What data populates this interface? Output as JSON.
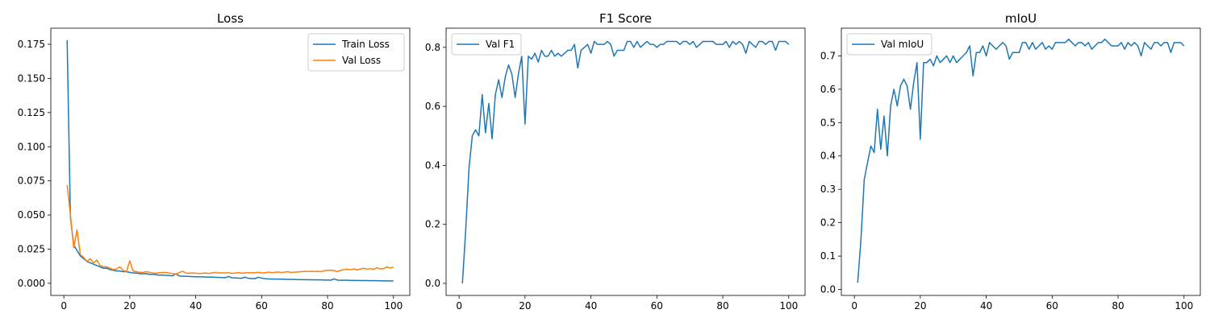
{
  "chart_data": [
    {
      "type": "line",
      "title": "Loss",
      "xlabel": "",
      "ylabel": "",
      "xlim": [
        -3.95,
        104.95
      ],
      "ylim": [
        -0.0089,
        0.1868
      ],
      "xticks": [
        0,
        20,
        40,
        60,
        80,
        100
      ],
      "xtick_labels": [
        "0",
        "20",
        "40",
        "60",
        "80",
        "100"
      ],
      "yticks": [
        0.0,
        0.025,
        0.05,
        0.075,
        0.1,
        0.125,
        0.15,
        0.175
      ],
      "ytick_labels": [
        "0.000",
        "0.025",
        "0.050",
        "0.075",
        "0.100",
        "0.125",
        "0.150",
        "0.175"
      ],
      "legend_position": "upper right",
      "grid": false,
      "x_start": 1,
      "series": [
        {
          "name": "Train Loss",
          "color": "#1f77b4",
          "values": [
            0.178,
            0.048,
            0.028,
            0.024,
            0.02,
            0.018,
            0.016,
            0.015,
            0.014,
            0.013,
            0.012,
            0.011,
            0.011,
            0.01,
            0.0095,
            0.009,
            0.009,
            0.0085,
            0.0085,
            0.008,
            0.0075,
            0.0075,
            0.007,
            0.007,
            0.007,
            0.0065,
            0.0065,
            0.0063,
            0.006,
            0.006,
            0.0058,
            0.0057,
            0.0055,
            0.007,
            0.0053,
            0.0052,
            0.0052,
            0.005,
            0.0049,
            0.0048,
            0.0047,
            0.0047,
            0.0046,
            0.0045,
            0.0045,
            0.0044,
            0.0043,
            0.0042,
            0.0041,
            0.005,
            0.004,
            0.0039,
            0.0038,
            0.0037,
            0.0045,
            0.0036,
            0.0035,
            0.0034,
            0.0044,
            0.0038,
            0.0033,
            0.0032,
            0.0031,
            0.0031,
            0.003,
            0.003,
            0.0029,
            0.0029,
            0.0028,
            0.0028,
            0.0027,
            0.0027,
            0.0027,
            0.0026,
            0.0026,
            0.0025,
            0.0025,
            0.0025,
            0.0024,
            0.0024,
            0.0023,
            0.0032,
            0.0023,
            0.0022,
            0.0022,
            0.0022,
            0.0021,
            0.0021,
            0.0021,
            0.002,
            0.002,
            0.002,
            0.0019,
            0.0019,
            0.0019,
            0.0018,
            0.0018,
            0.0018,
            0.0017,
            0.0017
          ]
        },
        {
          "name": "Val Loss",
          "color": "#ff7f0e",
          "values": [
            0.072,
            0.05,
            0.026,
            0.039,
            0.021,
            0.019,
            0.016,
            0.018,
            0.015,
            0.017,
            0.013,
            0.012,
            0.012,
            0.011,
            0.01,
            0.0105,
            0.012,
            0.0095,
            0.0085,
            0.0165,
            0.009,
            0.0085,
            0.008,
            0.008,
            0.0085,
            0.008,
            0.0075,
            0.0073,
            0.0078,
            0.0078,
            0.008,
            0.0075,
            0.0072,
            0.0065,
            0.0078,
            0.0088,
            0.0075,
            0.0073,
            0.0076,
            0.0074,
            0.0072,
            0.0073,
            0.0075,
            0.0072,
            0.0076,
            0.008,
            0.0075,
            0.0077,
            0.0075,
            0.0078,
            0.0072,
            0.0075,
            0.0078,
            0.0074,
            0.0076,
            0.0078,
            0.0075,
            0.0078,
            0.008,
            0.0077,
            0.0076,
            0.0082,
            0.0078,
            0.008,
            0.0083,
            0.0078,
            0.0082,
            0.0085,
            0.0079,
            0.0081,
            0.0083,
            0.0085,
            0.0087,
            0.0086,
            0.0088,
            0.0086,
            0.0088,
            0.0085,
            0.0092,
            0.0095,
            0.0096,
            0.0093,
            0.0085,
            0.0095,
            0.01,
            0.0102,
            0.01,
            0.0105,
            0.0098,
            0.0105,
            0.011,
            0.0103,
            0.0108,
            0.0102,
            0.0113,
            0.0105,
            0.0108,
            0.012,
            0.0112,
            0.0118
          ]
        }
      ]
    },
    {
      "type": "line",
      "title": "F1 Score",
      "xlabel": "",
      "ylabel": "",
      "xlim": [
        -3.95,
        104.95
      ],
      "ylim": [
        -0.041,
        0.865
      ],
      "xticks": [
        0,
        20,
        40,
        60,
        80,
        100
      ],
      "xtick_labels": [
        "0",
        "20",
        "40",
        "60",
        "80",
        "100"
      ],
      "yticks": [
        0.0,
        0.2,
        0.4,
        0.6,
        0.8
      ],
      "ytick_labels": [
        "0.0",
        "0.2",
        "0.4",
        "0.6",
        "0.8"
      ],
      "legend_position": "upper left",
      "grid": false,
      "x_start": 1,
      "series": [
        {
          "name": "Val F1",
          "color": "#1f77b4",
          "values": [
            0.0,
            0.18,
            0.39,
            0.5,
            0.52,
            0.5,
            0.64,
            0.51,
            0.61,
            0.49,
            0.64,
            0.69,
            0.63,
            0.7,
            0.74,
            0.71,
            0.63,
            0.71,
            0.77,
            0.54,
            0.77,
            0.76,
            0.78,
            0.75,
            0.79,
            0.77,
            0.77,
            0.79,
            0.77,
            0.78,
            0.77,
            0.78,
            0.79,
            0.79,
            0.81,
            0.73,
            0.79,
            0.8,
            0.81,
            0.78,
            0.82,
            0.81,
            0.81,
            0.81,
            0.82,
            0.81,
            0.77,
            0.79,
            0.79,
            0.79,
            0.82,
            0.82,
            0.8,
            0.82,
            0.8,
            0.81,
            0.82,
            0.81,
            0.81,
            0.8,
            0.81,
            0.81,
            0.82,
            0.82,
            0.82,
            0.82,
            0.81,
            0.82,
            0.82,
            0.81,
            0.82,
            0.8,
            0.81,
            0.82,
            0.82,
            0.82,
            0.82,
            0.81,
            0.81,
            0.81,
            0.82,
            0.8,
            0.82,
            0.81,
            0.82,
            0.81,
            0.78,
            0.82,
            0.81,
            0.8,
            0.82,
            0.82,
            0.81,
            0.82,
            0.82,
            0.79,
            0.82,
            0.82,
            0.82,
            0.81
          ]
        }
      ]
    },
    {
      "type": "line",
      "title": "mIoU",
      "xlabel": "",
      "ylabel": "",
      "xlim": [
        -3.95,
        104.95
      ],
      "ylim": [
        -0.018,
        0.783
      ],
      "xticks": [
        0,
        20,
        40,
        60,
        80,
        100
      ],
      "xtick_labels": [
        "0",
        "20",
        "40",
        "60",
        "80",
        "100"
      ],
      "yticks": [
        0.0,
        0.1,
        0.2,
        0.3,
        0.4,
        0.5,
        0.6,
        0.7
      ],
      "ytick_labels": [
        "0.0",
        "0.1",
        "0.2",
        "0.3",
        "0.4",
        "0.5",
        "0.6",
        "0.7"
      ],
      "legend_position": "upper left",
      "grid": false,
      "x_start": 1,
      "series": [
        {
          "name": "Val mIoU",
          "color": "#1f77b4",
          "values": [
            0.02,
            0.15,
            0.33,
            0.38,
            0.43,
            0.41,
            0.54,
            0.42,
            0.52,
            0.4,
            0.55,
            0.6,
            0.55,
            0.61,
            0.63,
            0.61,
            0.54,
            0.62,
            0.68,
            0.45,
            0.68,
            0.68,
            0.69,
            0.67,
            0.7,
            0.68,
            0.69,
            0.7,
            0.68,
            0.7,
            0.68,
            0.69,
            0.7,
            0.71,
            0.73,
            0.64,
            0.71,
            0.71,
            0.73,
            0.7,
            0.74,
            0.73,
            0.72,
            0.73,
            0.74,
            0.73,
            0.69,
            0.71,
            0.71,
            0.71,
            0.74,
            0.74,
            0.72,
            0.74,
            0.72,
            0.73,
            0.74,
            0.72,
            0.73,
            0.72,
            0.74,
            0.74,
            0.74,
            0.74,
            0.75,
            0.74,
            0.73,
            0.74,
            0.74,
            0.73,
            0.74,
            0.72,
            0.73,
            0.74,
            0.74,
            0.75,
            0.74,
            0.73,
            0.73,
            0.73,
            0.74,
            0.72,
            0.74,
            0.73,
            0.74,
            0.73,
            0.7,
            0.74,
            0.73,
            0.72,
            0.74,
            0.74,
            0.73,
            0.74,
            0.74,
            0.71,
            0.74,
            0.74,
            0.74,
            0.73
          ]
        }
      ]
    }
  ]
}
